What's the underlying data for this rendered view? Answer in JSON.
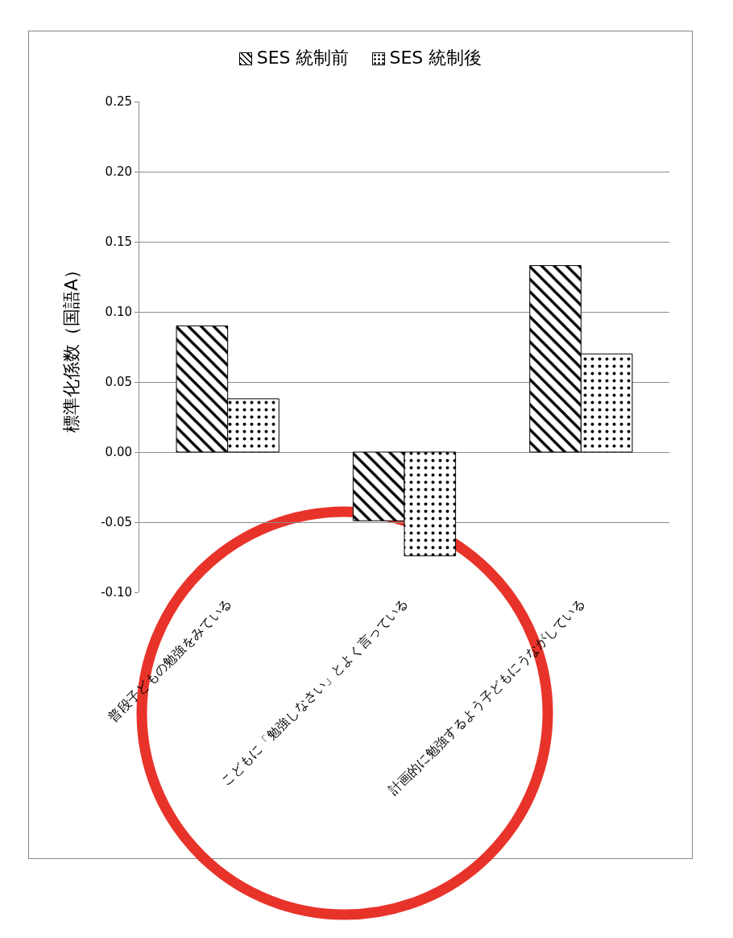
{
  "chart_data": {
    "type": "bar",
    "ylabel": "標準化係数（国語A）",
    "categories": [
      "普段子どもの勉強をみている",
      "こどもに「勉強しなさい」とよく言っている",
      "計画的に勉強するよう子どもにうながしている"
    ],
    "series": [
      {
        "name": "SES 統制前",
        "color": "#000000",
        "values": [
          0.09,
          -0.049,
          0.133
        ]
      },
      {
        "name": "SES 統制後",
        "color": "#000000",
        "values": [
          0.038,
          -0.074,
          0.07
        ]
      }
    ],
    "ylim": [
      -0.1,
      0.25
    ],
    "yticks": [
      {
        "value": -0.1,
        "label": "-0.10"
      },
      {
        "value": -0.05,
        "label": "-0.05"
      },
      {
        "value": 0,
        "label": "0.00"
      },
      {
        "value": 0.05,
        "label": "0.05"
      },
      {
        "value": 0.1,
        "label": "0.10"
      },
      {
        "value": 0.15,
        "label": "0.15"
      },
      {
        "value": 0.2,
        "label": "0.20"
      },
      {
        "value": 0.25,
        "label": "0.25"
      }
    ],
    "grid": "y",
    "legend": "top"
  }
}
